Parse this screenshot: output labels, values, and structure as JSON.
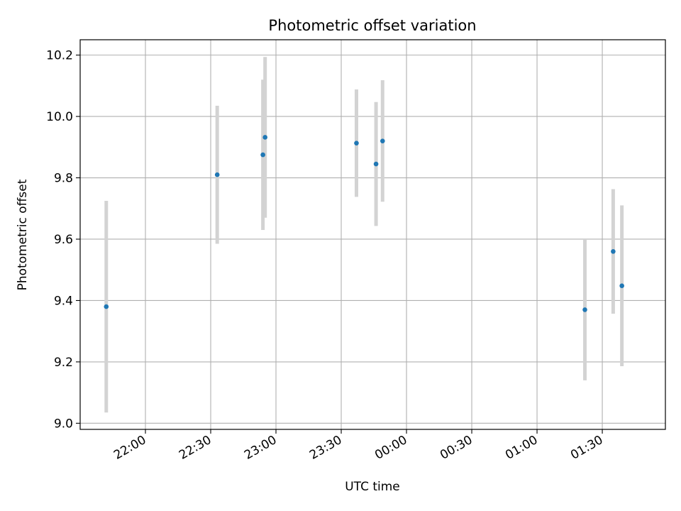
{
  "chart_data": {
    "type": "scatter",
    "title": "Photometric offset variation",
    "xlabel": "UTC time",
    "ylabel": "Photometric offset",
    "x_axis_type": "time",
    "xlim": [
      "21:30",
      "01:59"
    ],
    "ylim": [
      8.98,
      10.25
    ],
    "x_ticks": [
      "22:00",
      "22:30",
      "23:00",
      "23:30",
      "00:00",
      "00:30",
      "01:00",
      "01:30"
    ],
    "y_ticks": [
      "9.0",
      "9.2",
      "9.4",
      "9.6",
      "9.8",
      "10.0",
      "10.2"
    ],
    "grid": true,
    "legend": "none",
    "colors": {
      "point": "#1f77b4",
      "errorbar": "#d3d3d3",
      "grid": "#b0b0b0"
    },
    "points": [
      {
        "x": "21:42",
        "y": 9.38,
        "err": 0.345
      },
      {
        "x": "22:33",
        "y": 9.81,
        "err": 0.225
      },
      {
        "x": "22:54",
        "y": 9.875,
        "err": 0.245
      },
      {
        "x": "22:55",
        "y": 9.932,
        "err": 0.262
      },
      {
        "x": "23:37",
        "y": 9.913,
        "err": 0.175
      },
      {
        "x": "23:46",
        "y": 9.845,
        "err": 0.202
      },
      {
        "x": "23:49",
        "y": 9.92,
        "err": 0.198
      },
      {
        "x": "01:22",
        "y": 9.37,
        "err": 0.23
      },
      {
        "x": "01:35",
        "y": 9.56,
        "err": 0.203
      },
      {
        "x": "01:39",
        "y": 9.448,
        "err": 0.262
      }
    ]
  }
}
